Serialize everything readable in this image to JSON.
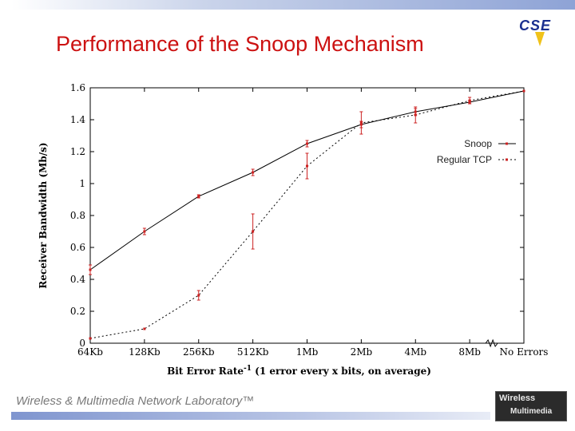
{
  "slide": {
    "title": "Performance of the Snoop Mechanism",
    "logo_text": "CSE",
    "footer": "Wireless & Multimedia Network Laboratory™",
    "footer_logo_line1": "Wireless",
    "footer_logo_line2": "Multimedia"
  },
  "colors": {
    "title": "#cc1111",
    "marker": "#cc2222",
    "line": "#000000"
  },
  "chart_data": {
    "type": "line",
    "title": "",
    "xlabel": "Bit Error Rate",
    "xlabel_sup": "-1",
    "xlabel_rest": "(1 error every x bits, on average)",
    "ylabel": "Receiver Bandwidth (Mb/s)",
    "ylim": [
      0,
      1.6
    ],
    "yticks": [
      "0",
      "0.2",
      "0.4",
      "0.6",
      "0.8",
      "1",
      "1.2",
      "1.4",
      "1.6"
    ],
    "ytick_values": [
      0,
      0.2,
      0.4,
      0.6,
      0.8,
      1.0,
      1.2,
      1.4,
      1.6
    ],
    "categories": [
      "64Kb",
      "128Kb",
      "256Kb",
      "512Kb",
      "1Mb",
      "2Mb",
      "4Mb",
      "8Mb",
      "No Errors"
    ],
    "legend_position": "top-right",
    "series": [
      {
        "name": "Snoop",
        "style": "solid",
        "values": [
          0.46,
          0.7,
          0.92,
          1.07,
          1.25,
          1.37,
          1.45,
          1.51,
          1.58
        ],
        "error": [
          0.03,
          0.02,
          0.01,
          0.02,
          0.02,
          0.02,
          0.02,
          0.01,
          0.0
        ]
      },
      {
        "name": "Regular TCP",
        "style": "dashed",
        "values": [
          0.03,
          0.09,
          0.3,
          0.7,
          1.11,
          1.38,
          1.43,
          1.52,
          1.58
        ],
        "error": [
          0.0,
          0.0,
          0.03,
          0.11,
          0.08,
          0.07,
          0.05,
          0.02,
          0.0
        ]
      }
    ]
  }
}
